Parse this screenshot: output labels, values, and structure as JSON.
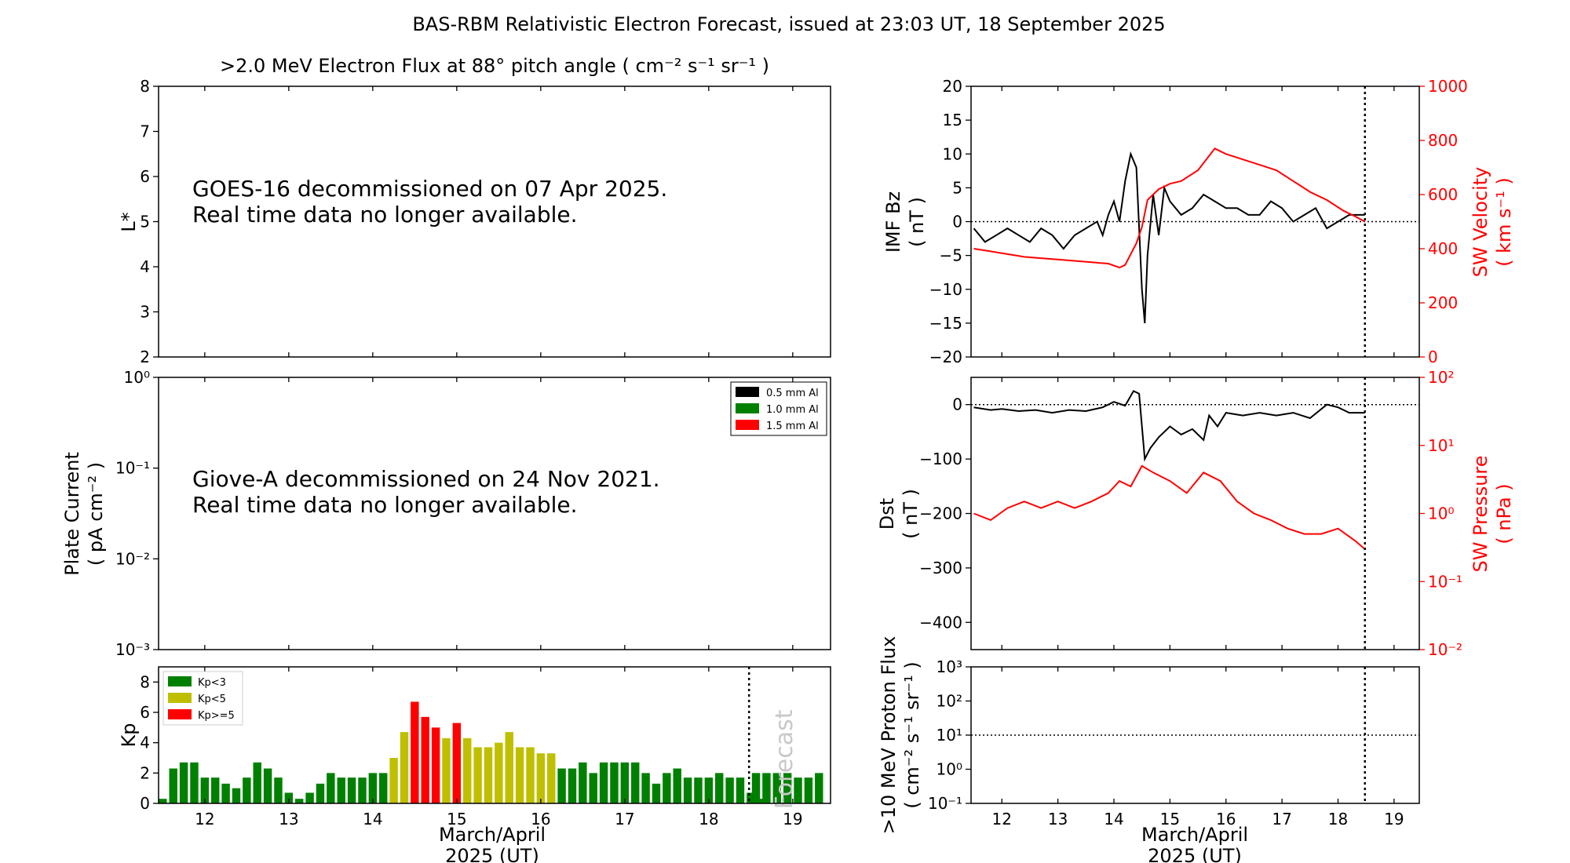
{
  "figure": {
    "title": "BAS-RBM Relativistic Electron Forecast, issued at 23:03 UT, 18 September 2025",
    "x_label_line1": "March/April",
    "x_label_line2": "2025 (UT)"
  },
  "colors": {
    "red": "#ff0000",
    "black": "#000000",
    "kp_green": "#008000",
    "kp_yellow": "#bfbf00",
    "kp_red": "#ff0000",
    "forecast_text": "#c8c8c8"
  },
  "chart_data": [
    {
      "id": "electron-flux",
      "type": "table",
      "title": ">2.0 MeV Electron Flux at 88° pitch angle ( cm⁻² s⁻¹ sr⁻¹ )",
      "ylabel": "L*",
      "ylim": [
        2,
        8
      ],
      "yticks": [
        2,
        3,
        4,
        5,
        6,
        7,
        8
      ],
      "xlim": [
        11.45,
        19.45
      ],
      "message_line1": "GOES-16 decommissioned on 07 Apr 2025.",
      "message_line2": "Real time data no longer available."
    },
    {
      "id": "plate-current",
      "type": "table",
      "ylabel_line1": "Plate Current",
      "ylabel_line2": "( pA cm⁻² )",
      "yscale": "log",
      "ylim": [
        0.001,
        1
      ],
      "ytick_labels": [
        "10⁻³",
        "10⁻²",
        "10⁻¹",
        "10⁰"
      ],
      "xlim": [
        11.45,
        19.45
      ],
      "legend": [
        "0.5 mm Al",
        "1.0 mm Al",
        "1.5 mm Al"
      ],
      "legend_placement": "top-right",
      "message_line1": "Giove-A decommissioned on 24 Nov 2021.",
      "message_line2": "Real time data no longer available."
    },
    {
      "id": "kp",
      "type": "bar",
      "ylabel": "Kp",
      "ylim": [
        0,
        9
      ],
      "yticks": [
        0,
        2,
        4,
        6,
        8
      ],
      "xlim": [
        11.45,
        19.45
      ],
      "xticks": [
        12,
        13,
        14,
        15,
        16,
        17,
        18,
        19
      ],
      "bar_start": 11.5,
      "bar_step": 0.125,
      "values": [
        0.3,
        2.3,
        2.7,
        2.7,
        1.7,
        1.7,
        1.3,
        1.0,
        1.7,
        2.7,
        2.3,
        1.7,
        0.7,
        0.3,
        0.7,
        1.3,
        2.0,
        1.7,
        1.7,
        1.7,
        2.0,
        2.0,
        3.0,
        4.7,
        6.7,
        5.7,
        5.0,
        4.3,
        5.3,
        4.3,
        3.7,
        3.7,
        4.0,
        4.7,
        3.7,
        3.7,
        3.3,
        3.3,
        2.3,
        2.3,
        2.7,
        2.0,
        2.7,
        2.7,
        2.7,
        2.7,
        2.0,
        1.3,
        2.0,
        2.3,
        1.7,
        1.7,
        1.7,
        2.0,
        1.7,
        1.7,
        0.7,
        0.3
      ],
      "forecast_values": [
        2.0,
        2.0,
        2.0,
        2.0,
        1.7,
        1.7,
        2.0
      ],
      "forecast_start": 18.5,
      "forecast_label": "Forecast",
      "forecast_line_x": 18.48,
      "legend": [
        "Kp<3",
        "Kp<5",
        "Kp>=5"
      ],
      "legend_placement": "top-left"
    },
    {
      "id": "imf-bz",
      "type": "line",
      "ylabel_line1": "IMF Bz",
      "ylabel_line2": "( nT )",
      "ylim": [
        -20,
        20
      ],
      "yticks": [
        -20,
        -15,
        -10,
        -5,
        0,
        5,
        10,
        15,
        20
      ],
      "y2label_line1": "SW Velocity",
      "y2label_line2": "( km s⁻¹ )",
      "y2lim": [
        0,
        1000
      ],
      "y2ticks": [
        0,
        200,
        400,
        600,
        800,
        1000
      ],
      "xlim": [
        11.45,
        19.45
      ],
      "xticks": [
        12,
        13,
        14,
        15,
        16,
        17,
        18,
        19
      ],
      "now_line_x": 18.48,
      "series": [
        {
          "axis": "left",
          "color": "#000000",
          "x": [
            11.5,
            11.7,
            11.9,
            12.1,
            12.3,
            12.5,
            12.7,
            12.9,
            13.1,
            13.3,
            13.5,
            13.7,
            13.8,
            13.9,
            14.0,
            14.1,
            14.2,
            14.3,
            14.4,
            14.5,
            14.55,
            14.6,
            14.7,
            14.8,
            14.9,
            15.0,
            15.2,
            15.4,
            15.6,
            15.8,
            16.0,
            16.2,
            16.4,
            16.6,
            16.8,
            17.0,
            17.2,
            17.4,
            17.6,
            17.8,
            18.0,
            18.2,
            18.48
          ],
          "y": [
            -1,
            -3,
            -2,
            -1,
            -2,
            -3,
            -1,
            -2,
            -4,
            -2,
            -1,
            0,
            -2,
            1,
            3,
            0,
            6,
            10,
            8,
            -10,
            -15,
            -5,
            4,
            -2,
            5,
            3,
            1,
            2,
            4,
            3,
            2,
            2,
            1,
            1,
            3,
            2,
            0,
            1,
            2,
            -1,
            0,
            1,
            1
          ]
        },
        {
          "axis": "right",
          "color": "#ff0000",
          "x": [
            11.5,
            11.8,
            12.1,
            12.4,
            12.7,
            13.0,
            13.3,
            13.6,
            13.9,
            14.1,
            14.2,
            14.3,
            14.4,
            14.5,
            14.6,
            14.8,
            15.0,
            15.2,
            15.5,
            15.8,
            16.0,
            16.3,
            16.6,
            16.9,
            17.2,
            17.5,
            17.8,
            18.1,
            18.3,
            18.48
          ],
          "y": [
            400,
            390,
            380,
            370,
            365,
            360,
            355,
            350,
            345,
            330,
            340,
            380,
            420,
            480,
            580,
            620,
            640,
            650,
            690,
            770,
            750,
            730,
            710,
            690,
            650,
            610,
            580,
            540,
            520,
            500
          ]
        }
      ]
    },
    {
      "id": "dst",
      "type": "line",
      "ylabel_line1": "Dst",
      "ylabel_line2": "( nT )",
      "ylim": [
        -450,
        50
      ],
      "yticks": [
        -400,
        -300,
        -200,
        -100,
        0
      ],
      "y2label_line1": "SW Pressure",
      "y2label_line2": "( nPa )",
      "y2scale": "log",
      "y2lim": [
        0.01,
        100
      ],
      "y2tick_labels": [
        "10⁻²",
        "10⁻¹",
        "10⁰",
        "10¹",
        "10²"
      ],
      "xlim": [
        11.45,
        19.45
      ],
      "xticks": [
        12,
        13,
        14,
        15,
        16,
        17,
        18,
        19
      ],
      "now_line_x": 18.48,
      "series": [
        {
          "axis": "left",
          "color": "#000000",
          "x": [
            11.5,
            11.8,
            12.0,
            12.3,
            12.6,
            12.9,
            13.2,
            13.5,
            13.8,
            14.0,
            14.2,
            14.35,
            14.45,
            14.55,
            14.65,
            14.8,
            15.0,
            15.2,
            15.4,
            15.6,
            15.7,
            15.85,
            16.0,
            16.3,
            16.6,
            16.9,
            17.2,
            17.5,
            17.8,
            18.0,
            18.2,
            18.48
          ],
          "y": [
            -5,
            -10,
            -8,
            -12,
            -10,
            -15,
            -10,
            -12,
            -5,
            5,
            -2,
            25,
            20,
            -100,
            -80,
            -60,
            -40,
            -55,
            -45,
            -65,
            -20,
            -40,
            -15,
            -20,
            -15,
            -20,
            -15,
            -25,
            0,
            -5,
            -15,
            -15
          ]
        },
        {
          "axis": "right",
          "color": "#ff0000",
          "x": [
            11.5,
            11.8,
            12.1,
            12.4,
            12.7,
            13.0,
            13.3,
            13.6,
            13.9,
            14.1,
            14.3,
            14.5,
            14.7,
            15.0,
            15.3,
            15.6,
            15.9,
            16.2,
            16.5,
            16.8,
            17.1,
            17.4,
            17.7,
            18.0,
            18.3,
            18.48
          ],
          "y": [
            1.0,
            0.8,
            1.2,
            1.5,
            1.2,
            1.5,
            1.2,
            1.5,
            2.0,
            3.0,
            2.5,
            5.0,
            4.0,
            3.0,
            2.0,
            4.0,
            3.0,
            1.5,
            1.0,
            0.8,
            0.6,
            0.5,
            0.5,
            0.6,
            0.4,
            0.3
          ]
        }
      ]
    },
    {
      "id": "proton-flux",
      "type": "line",
      "ylabel_line1": ">10 MeV Proton Flux",
      "ylabel_line2": "( cm⁻² s⁻¹ sr⁻¹ )",
      "yscale": "log",
      "ylim": [
        0.1,
        1000
      ],
      "ytick_labels": [
        "10⁻¹",
        "10⁰",
        "10¹",
        "10²",
        "10³"
      ],
      "threshold": 10,
      "xlim": [
        11.45,
        19.45
      ],
      "xticks": [
        12,
        13,
        14,
        15,
        16,
        17,
        18,
        19
      ],
      "now_line_x": 18.48,
      "series": []
    }
  ]
}
